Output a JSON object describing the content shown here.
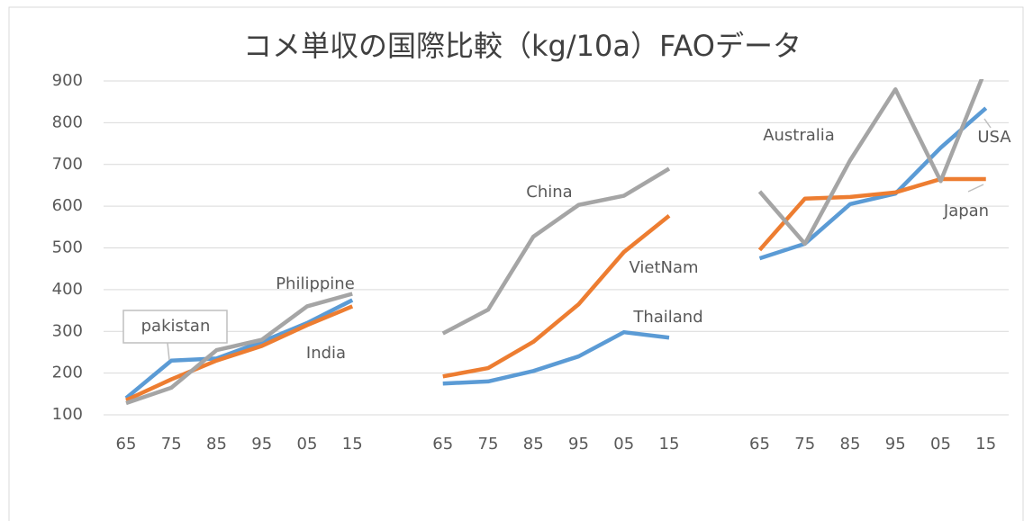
{
  "chart_data": {
    "type": "line",
    "title": "コメ単収の国際比較（kg/10a）FAOデータ",
    "categories": [
      "65",
      "75",
      "85",
      "95",
      "05",
      "15",
      null,
      "65",
      "75",
      "85",
      "95",
      "05",
      "15",
      null,
      "65",
      "75",
      "85",
      "95",
      "05",
      "15"
    ],
    "series": [
      {
        "color": "#5b9bd5",
        "values": [
          140,
          230,
          235,
          275,
          320,
          375,
          null,
          175,
          180,
          205,
          240,
          298,
          285,
          null,
          475,
          510,
          605,
          630,
          740,
          835
        ]
      },
      {
        "color": "#ed7d31",
        "values": [
          135,
          185,
          230,
          265,
          315,
          360,
          null,
          192,
          212,
          275,
          365,
          490,
          577,
          null,
          495,
          618,
          622,
          633,
          665,
          665
        ]
      },
      {
        "color": "#a5a5a5",
        "values": [
          128,
          165,
          255,
          280,
          360,
          390,
          null,
          295,
          352,
          527,
          603,
          625,
          690,
          null,
          635,
          510,
          710,
          880,
          660,
          930
        ]
      }
    ],
    "ylim": [
      100,
      900
    ],
    "yticks": [
      100,
      200,
      300,
      400,
      500,
      600,
      700,
      800,
      900
    ],
    "grid": true,
    "annotations": [
      "pakistan",
      "Philippine",
      "India",
      "China",
      "VietNam",
      "Thailand",
      "Australia",
      "USA",
      "Japan"
    ]
  }
}
